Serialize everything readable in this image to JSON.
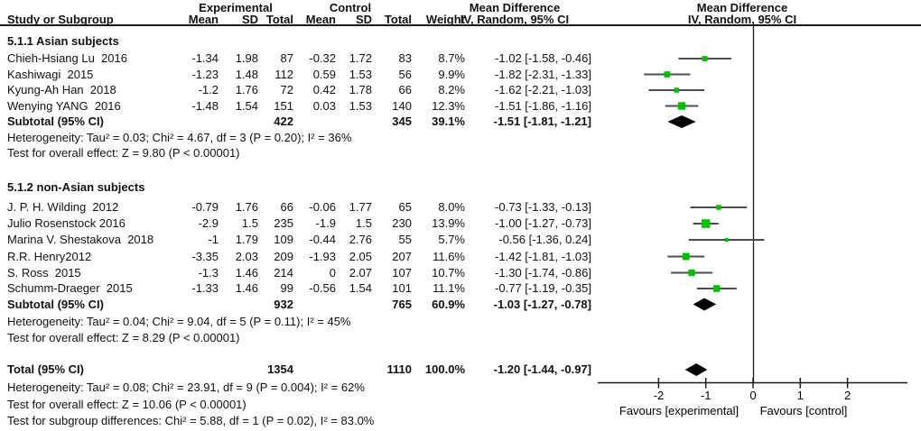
{
  "header": {
    "study_or_subgroup": "Study or Subgroup",
    "experimental": "Experimental",
    "control": "Control",
    "mean": "Mean",
    "sd": "SD",
    "total": "Total",
    "weight": "Weight",
    "mean_difference": "Mean Difference",
    "method": "IV, Random, 95% CI"
  },
  "chart_data": {
    "type": "forest",
    "effect_measure": "Mean Difference",
    "method_label": "IV, Random, 95% CI",
    "axis": {
      "ticks": [
        -2,
        -1,
        0,
        1,
        2
      ],
      "domain": [
        -3.3,
        3.27
      ],
      "favours_left": "Favours [experimental]",
      "favours_right": "Favours [control]"
    },
    "colors": {
      "marker": "#00bf00",
      "ci_line": "#4d4d4d",
      "diamond": "#000000",
      "axis": "#1a1a1a"
    },
    "groups": [
      {
        "label": "5.1.1 Asian subjects",
        "studies": [
          {
            "name": "Chieh-Hsiang Lu  2016",
            "mean_e": "-1.34",
            "sd_e": "1.98",
            "total_e": "87",
            "mean_c": "-0.32",
            "sd_c": "1.72",
            "total_c": "83",
            "weight": "8.7%",
            "weight_pct": 8.7,
            "md_text": "-1.02 [-1.58, -0.46]",
            "est": -1.02,
            "lo": -1.58,
            "hi": -0.46
          },
          {
            "name": "Kashiwagi  2015",
            "mean_e": "-1.23",
            "sd_e": "1.48",
            "total_e": "112",
            "mean_c": "0.59",
            "sd_c": "1.53",
            "total_c": "56",
            "weight": "9.9%",
            "weight_pct": 9.9,
            "md_text": "-1.82 [-2.31, -1.33]",
            "est": -1.82,
            "lo": -2.31,
            "hi": -1.33
          },
          {
            "name": "Kyung-Ah Han  2018",
            "mean_e": "-1.2",
            "sd_e": "1.76",
            "total_e": "72",
            "mean_c": "0.42",
            "sd_c": "1.78",
            "total_c": "66",
            "weight": "8.2%",
            "weight_pct": 8.2,
            "md_text": "-1.62 [-2.21, -1.03]",
            "est": -1.62,
            "lo": -2.21,
            "hi": -1.03
          },
          {
            "name": "Wenying YANG  2016",
            "mean_e": "-1.48",
            "sd_e": "1.54",
            "total_e": "151",
            "mean_c": "0.03",
            "sd_c": "1.53",
            "total_c": "140",
            "weight": "12.3%",
            "weight_pct": 12.3,
            "md_text": "-1.51 [-1.86, -1.16]",
            "est": -1.51,
            "lo": -1.86,
            "hi": -1.16
          }
        ],
        "subtotal": {
          "label": "Subtotal (95% CI)",
          "total_e": "422",
          "total_c": "345",
          "weight": "39.1%",
          "md_text": "-1.51 [-1.81, -1.21]",
          "est": -1.51,
          "lo": -1.81,
          "hi": -1.21
        },
        "heterogeneity": "Heterogeneity: Tau² = 0.03; Chi² = 4.67, df = 3 (P = 0.20); I² = 36%",
        "overall_effect": "Test for overall effect: Z = 9.80 (P < 0.00001)"
      },
      {
        "label": "5.1.2 non-Asian subjects",
        "studies": [
          {
            "name": "J. P. H. Wilding  2012",
            "mean_e": "-0.79",
            "sd_e": "1.76",
            "total_e": "66",
            "mean_c": "-0.06",
            "sd_c": "1.77",
            "total_c": "65",
            "weight": "8.0%",
            "weight_pct": 8.0,
            "md_text": "-0.73 [-1.33, -0.13]",
            "est": -0.73,
            "lo": -1.33,
            "hi": -0.13
          },
          {
            "name": "Julio Rosenstock 2016",
            "mean_e": "-2.9",
            "sd_e": "1.5",
            "total_e": "235",
            "mean_c": "-1.9",
            "sd_c": "1.5",
            "total_c": "230",
            "weight": "13.9%",
            "weight_pct": 13.9,
            "md_text": "-1.00 [-1.27, -0.73]",
            "est": -1.0,
            "lo": -1.27,
            "hi": -0.73
          },
          {
            "name": "Marina V. Shestakova  2018",
            "mean_e": "-1",
            "sd_e": "1.79",
            "total_e": "109",
            "mean_c": "-0.44",
            "sd_c": "2.76",
            "total_c": "55",
            "weight": "5.7%",
            "weight_pct": 5.7,
            "md_text": "-0.56 [-1.36, 0.24]",
            "est": -0.56,
            "lo": -1.36,
            "hi": 0.24
          },
          {
            "name": "R.R. Henry2012",
            "mean_e": "-3.35",
            "sd_e": "2.03",
            "total_e": "209",
            "mean_c": "-1.93",
            "sd_c": "2.05",
            "total_c": "207",
            "weight": "11.6%",
            "weight_pct": 11.6,
            "md_text": "-1.42 [-1.81, -1.03]",
            "est": -1.42,
            "lo": -1.81,
            "hi": -1.03
          },
          {
            "name": "S. Ross  2015",
            "mean_e": "-1.3",
            "sd_e": "1.46",
            "total_e": "214",
            "mean_c": "0",
            "sd_c": "2.07",
            "total_c": "107",
            "weight": "10.7%",
            "weight_pct": 10.7,
            "md_text": "-1.30 [-1.74, -0.86]",
            "est": -1.3,
            "lo": -1.74,
            "hi": -0.86
          },
          {
            "name": "Schumm-Draeger  2015",
            "mean_e": "-1.33",
            "sd_e": "1.46",
            "total_e": "99",
            "mean_c": "-0.56",
            "sd_c": "1.54",
            "total_c": "101",
            "weight": "11.1%",
            "weight_pct": 11.1,
            "md_text": "-0.77 [-1.19, -0.35]",
            "est": -0.77,
            "lo": -1.19,
            "hi": -0.35
          }
        ],
        "subtotal": {
          "label": "Subtotal (95% CI)",
          "total_e": "932",
          "total_c": "765",
          "weight": "60.9%",
          "md_text": "-1.03 [-1.27, -0.78]",
          "est": -1.03,
          "lo": -1.27,
          "hi": -0.78
        },
        "heterogeneity": "Heterogeneity: Tau² = 0.04; Chi² = 9.04, df = 5 (P = 0.11); I² = 45%",
        "overall_effect": "Test for overall effect: Z = 8.29 (P < 0.00001)"
      }
    ],
    "total": {
      "label": "Total (95% CI)",
      "total_e": "1354",
      "total_c": "1110",
      "weight": "100.0%",
      "md_text": "-1.20 [-1.44, -0.97]",
      "est": -1.2,
      "lo": -1.44,
      "hi": -0.97,
      "heterogeneity": "Heterogeneity: Tau² = 0.08; Chi² = 23.91, df = 9 (P = 0.004); I² = 62%",
      "overall_effect": "Test for overall effect: Z = 10.06 (P < 0.00001)",
      "subgroup_differences": "Test for subgroup differences: Chi² = 5.88, df = 1 (P = 0.02), I² = 83.0%"
    }
  }
}
